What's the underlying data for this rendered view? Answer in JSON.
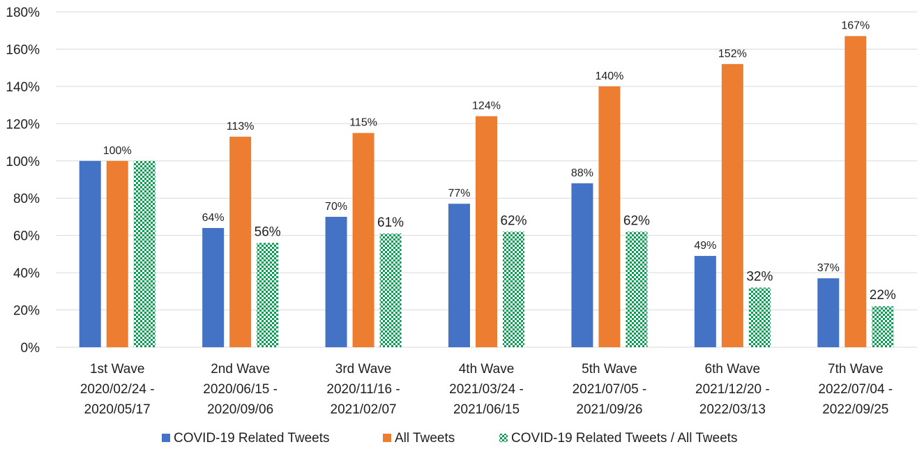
{
  "chart_data": {
    "type": "bar",
    "title": "",
    "xlabel": "",
    "ylabel": "",
    "ylim": [
      0,
      180
    ],
    "yticks": [
      0,
      20,
      40,
      60,
      80,
      100,
      120,
      140,
      160,
      180
    ],
    "ytick_suffix": "%",
    "grid": true,
    "legend_position": "bottom",
    "categories": [
      {
        "name": "1st Wave",
        "dates": [
          "2020/02/24 -",
          "2020/05/17"
        ]
      },
      {
        "name": "2nd Wave",
        "dates": [
          "2020/06/15 -",
          "2020/09/06"
        ]
      },
      {
        "name": "3rd Wave",
        "dates": [
          "2020/11/16 -",
          "2021/02/07"
        ]
      },
      {
        "name": "4th Wave",
        "dates": [
          "2021/03/24 -",
          "2021/06/15"
        ]
      },
      {
        "name": "5th Wave",
        "dates": [
          "2021/07/05 -",
          "2021/09/26"
        ]
      },
      {
        "name": "6th Wave",
        "dates": [
          "2021/12/20 -",
          "2022/03/13"
        ]
      },
      {
        "name": "7th Wave",
        "dates": [
          "2022/07/04 -",
          "2022/09/25"
        ]
      }
    ],
    "series": [
      {
        "name": "COVID-19 Related Tweets",
        "color": "#4472c4",
        "pattern": "solid",
        "values": [
          100,
          64,
          70,
          77,
          88,
          49,
          37
        ],
        "labels": [
          null,
          "64%",
          "70%",
          "77%",
          "88%",
          "49%",
          "37%"
        ]
      },
      {
        "name": "All Tweets",
        "color": "#ed7d31",
        "pattern": "solid",
        "values": [
          100,
          113,
          115,
          124,
          140,
          152,
          167
        ],
        "labels": [
          "100%",
          "113%",
          "115%",
          "124%",
          "140%",
          "152%",
          "167%"
        ]
      },
      {
        "name": "COVID-19 Related Tweets / All Tweets",
        "color": "#00a050",
        "pattern": "checker",
        "values": [
          100,
          56,
          61,
          62,
          62,
          32,
          22
        ],
        "labels": [
          null,
          "56%",
          "61%",
          "62%",
          "62%",
          "32%",
          "22%"
        ]
      }
    ]
  }
}
